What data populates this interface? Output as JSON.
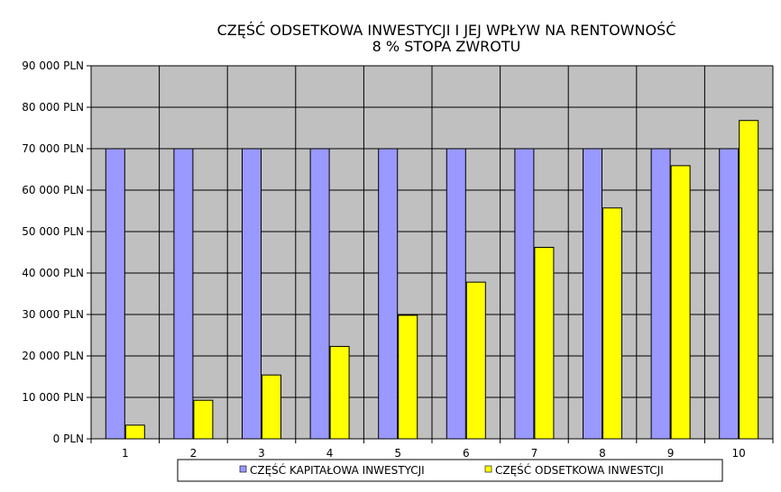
{
  "chart_data": {
    "type": "bar",
    "title": "CZĘŚĆ ODSETKOWA INWESTYCJI I JEJ WPŁYW NA RENTOWNOŚĆ",
    "subtitle": "8 % STOPA ZWROTU",
    "xlabel": "",
    "ylabel": "",
    "categories": [
      "1",
      "2",
      "3",
      "4",
      "5",
      "6",
      "7",
      "8",
      "9",
      "10"
    ],
    "ylim": [
      0,
      90000
    ],
    "ytick_step": 10000,
    "ytick_labels": [
      "0 PLN",
      "10 000 PLN",
      "20 000 PLN",
      "30 000 PLN",
      "40 000 PLN",
      "50 000 PLN",
      "60 000 PLN",
      "70 000 PLN",
      "80 000 PLN",
      "90 000 PLN"
    ],
    "grid": true,
    "legend_position": "bottom",
    "plot_background": "#c0c0c0",
    "series": [
      {
        "name": "CZĘŚĆ KAPITAŁOWA INWESTYCJI",
        "color": "#9999ff",
        "values": [
          70000,
          70000,
          70000,
          70000,
          70000,
          70000,
          70000,
          70000,
          70000,
          70000
        ]
      },
      {
        "name": "CZĘŚĆ ODSETKOWA INWESTCJI",
        "color": "#ffff00",
        "values": [
          3300,
          9300,
          15400,
          22300,
          29800,
          37800,
          46200,
          55700,
          65900,
          76800
        ]
      }
    ]
  }
}
